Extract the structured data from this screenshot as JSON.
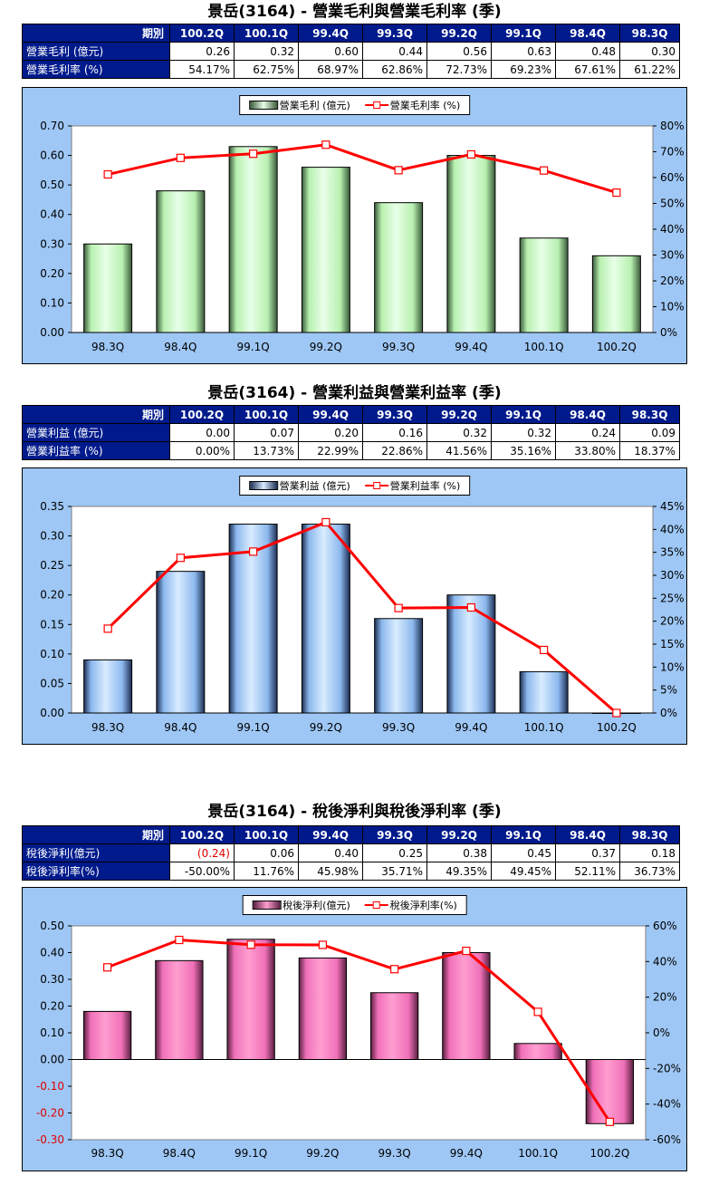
{
  "charts": [
    {
      "title": "景岳(3164) - 營業毛利與營業毛利率 (季)",
      "table": {
        "header_label": "期別",
        "periods": [
          "100.2Q",
          "100.1Q",
          "99.4Q",
          "99.3Q",
          "99.2Q",
          "99.1Q",
          "98.4Q",
          "98.3Q"
        ],
        "rows": [
          {
            "label": "營業毛利 (億元)",
            "values": [
              "0.26",
              "0.32",
              "0.60",
              "0.44",
              "0.56",
              "0.63",
              "0.48",
              "0.30"
            ]
          },
          {
            "label": "營業毛利率 (%)",
            "values": [
              "54.17%",
              "62.75%",
              "68.97%",
              "62.86%",
              "72.73%",
              "69.23%",
              "67.61%",
              "61.22%"
            ]
          }
        ]
      },
      "legend": {
        "bar": "營業毛利 (億元)",
        "line": "營業毛利率 (%)"
      },
      "colors": {
        "bar_light": "#e8ffe8",
        "bar_mid": "#b8f0b0",
        "bar_dark": "#3a5a3a"
      }
    },
    {
      "title": "景岳(3164) - 營業利益與營業利益率 (季)",
      "table": {
        "header_label": "期別",
        "periods": [
          "100.2Q",
          "100.1Q",
          "99.4Q",
          "99.3Q",
          "99.2Q",
          "99.1Q",
          "98.4Q",
          "98.3Q"
        ],
        "rows": [
          {
            "label": "營業利益 (億元)",
            "values": [
              "0.00",
              "0.07",
              "0.20",
              "0.16",
              "0.32",
              "0.32",
              "0.24",
              "0.09"
            ]
          },
          {
            "label": "營業利益率 (%)",
            "values": [
              "0.00%",
              "13.73%",
              "22.99%",
              "22.86%",
              "41.56%",
              "35.16%",
              "33.80%",
              "18.37%"
            ]
          }
        ]
      },
      "legend": {
        "bar": "營業利益 (億元)",
        "line": "營業利益率 (%)"
      },
      "colors": {
        "bar_light": "#d8ecff",
        "bar_mid": "#8cb8ee",
        "bar_dark": "#1c2e52"
      }
    },
    {
      "title": "景岳(3164) - 稅後淨利與稅後淨利率 (季)",
      "table": {
        "header_label": "期別",
        "periods": [
          "100.2Q",
          "100.1Q",
          "99.4Q",
          "99.3Q",
          "99.2Q",
          "99.1Q",
          "98.4Q",
          "98.3Q"
        ],
        "rows": [
          {
            "label": "稅後淨利(億元)",
            "values": [
              "(0.24)",
              "0.06",
              "0.40",
              "0.25",
              "0.38",
              "0.45",
              "0.37",
              "0.18"
            ]
          },
          {
            "label": "稅後淨利率(%)",
            "values": [
              "-50.00%",
              "11.76%",
              "45.98%",
              "35.71%",
              "49.35%",
              "49.45%",
              "52.11%",
              "36.73%"
            ]
          }
        ]
      },
      "legend": {
        "bar": "稅後淨利(億元)",
        "line": "稅後淨利率(%)"
      },
      "colors": {
        "bar_light": "#ff9ed0",
        "bar_mid": "#f070b8",
        "bar_dark": "#5a2040"
      }
    }
  ],
  "chart_data": [
    {
      "type": "bar",
      "categories": [
        "98.3Q",
        "98.4Q",
        "99.1Q",
        "99.2Q",
        "99.3Q",
        "99.4Q",
        "100.1Q",
        "100.2Q"
      ],
      "series": [
        {
          "name": "營業毛利 (億元)",
          "type": "bar",
          "axis": "left",
          "values": [
            0.3,
            0.48,
            0.63,
            0.56,
            0.44,
            0.6,
            0.32,
            0.26
          ]
        },
        {
          "name": "營業毛利率 (%)",
          "type": "line",
          "axis": "right",
          "values": [
            61.22,
            67.61,
            69.23,
            72.73,
            62.86,
            68.97,
            62.75,
            54.17
          ]
        }
      ],
      "ylim": [
        0,
        0.7
      ],
      "ytick_step": 0.1,
      "ytick_decimals": 2,
      "y2lim": [
        0,
        80
      ],
      "y2tick_step": 10,
      "legend_position": "top-center"
    },
    {
      "type": "bar",
      "categories": [
        "98.3Q",
        "98.4Q",
        "99.1Q",
        "99.2Q",
        "99.3Q",
        "99.4Q",
        "100.1Q",
        "100.2Q"
      ],
      "series": [
        {
          "name": "營業利益 (億元)",
          "type": "bar",
          "axis": "left",
          "values": [
            0.09,
            0.24,
            0.32,
            0.32,
            0.16,
            0.2,
            0.07,
            0.0
          ]
        },
        {
          "name": "營業利益率 (%)",
          "type": "line",
          "axis": "right",
          "values": [
            18.37,
            33.8,
            35.16,
            41.56,
            22.86,
            22.99,
            13.73,
            0.0
          ]
        }
      ],
      "ylim": [
        0,
        0.35
      ],
      "ytick_step": 0.05,
      "ytick_decimals": 2,
      "y2lim": [
        0,
        45
      ],
      "y2tick_step": 5,
      "legend_position": "top-center"
    },
    {
      "type": "bar",
      "categories": [
        "98.3Q",
        "98.4Q",
        "99.1Q",
        "99.2Q",
        "99.3Q",
        "99.4Q",
        "100.1Q",
        "100.2Q"
      ],
      "series": [
        {
          "name": "稅後淨利(億元)",
          "type": "bar",
          "axis": "left",
          "values": [
            0.18,
            0.37,
            0.45,
            0.38,
            0.25,
            0.4,
            0.06,
            -0.24
          ]
        },
        {
          "name": "稅後淨利率(%)",
          "type": "line",
          "axis": "right",
          "values": [
            36.73,
            52.11,
            49.45,
            49.35,
            35.71,
            45.98,
            11.76,
            -50.0
          ]
        }
      ],
      "ylim": [
        -0.3,
        0.5
      ],
      "ytick_step": 0.1,
      "ytick_decimals": 2,
      "y2lim": [
        -60,
        60
      ],
      "y2tick_step": 20,
      "legend_position": "top-center"
    }
  ]
}
